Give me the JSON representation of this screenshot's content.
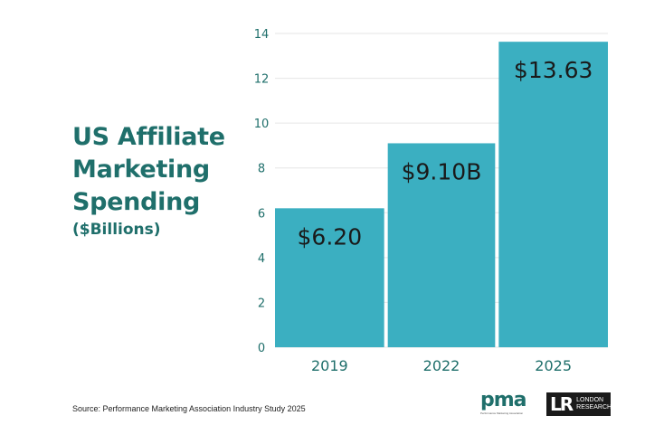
{
  "title": {
    "line1": "US Affiliate",
    "line2": "Marketing",
    "line3": "Spending",
    "subtitle": "($Billions)"
  },
  "source_text": "Source: Performance Marketing Association Industry Study 2025",
  "logos": {
    "pma": "pma",
    "pma_tagline": "Performance Marketing Association",
    "lr_mark": "LR",
    "lr_line1": "LONDON",
    "lr_line2": "RESEARCH"
  },
  "colors": {
    "bar": "#3bafc1",
    "grid": "#e6e6e6",
    "title": "#1f6f6b",
    "tick": "#1f6f6b"
  },
  "chart_data": {
    "type": "bar",
    "categories": [
      "2019",
      "2022",
      "2025"
    ],
    "values": [
      6.2,
      9.1,
      13.63
    ],
    "data_labels": [
      "$6.20",
      "$9.10B",
      "$13.63"
    ],
    "ylim": [
      0,
      14
    ],
    "yticks": [
      0,
      2,
      4,
      6,
      8,
      10,
      12,
      14
    ],
    "grid": true,
    "legend": "none"
  }
}
